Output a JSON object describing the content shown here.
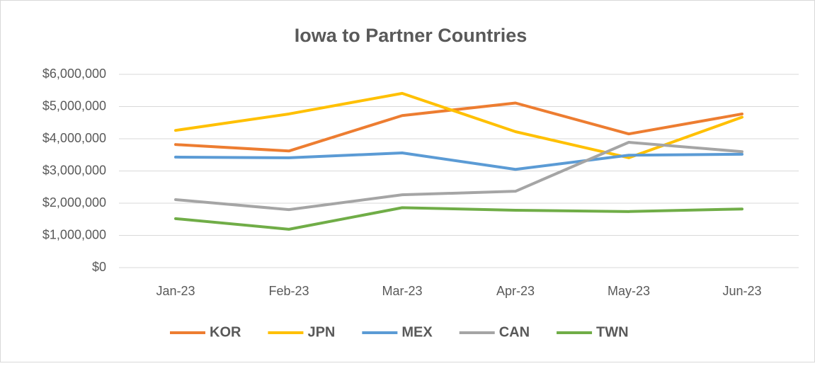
{
  "chart_data": {
    "type": "line",
    "title": "Iowa to Partner Countries",
    "categories": [
      "Jan-23",
      "Feb-23",
      "Mar-23",
      "Apr-23",
      "May-23",
      "Jun-23"
    ],
    "series": [
      {
        "name": "KOR",
        "color": "#ED7D31",
        "values": [
          3820000,
          3620000,
          4720000,
          5110000,
          4150000,
          4770000
        ]
      },
      {
        "name": "JPN",
        "color": "#FFC000",
        "values": [
          4260000,
          4770000,
          5410000,
          4220000,
          3410000,
          4670000
        ]
      },
      {
        "name": "MEX",
        "color": "#5B9BD5",
        "values": [
          3430000,
          3410000,
          3560000,
          3050000,
          3490000,
          3520000
        ]
      },
      {
        "name": "CAN",
        "color": "#A5A5A5",
        "values": [
          2110000,
          1800000,
          2260000,
          2370000,
          3890000,
          3600000
        ]
      },
      {
        "name": "TWN",
        "color": "#70AD47",
        "values": [
          1520000,
          1190000,
          1860000,
          1780000,
          1740000,
          1820000
        ]
      }
    ],
    "ylim": [
      0,
      6000000
    ],
    "yticks": [
      {
        "value": 0,
        "label": "$0"
      },
      {
        "value": 1000000,
        "label": "$1,000,000"
      },
      {
        "value": 2000000,
        "label": "$2,000,000"
      },
      {
        "value": 3000000,
        "label": "$3,000,000"
      },
      {
        "value": 4000000,
        "label": "$4,000,000"
      },
      {
        "value": 5000000,
        "label": "$5,000,000"
      },
      {
        "value": 6000000,
        "label": "$6,000,000"
      }
    ],
    "grid": true,
    "legend": "bottom"
  }
}
